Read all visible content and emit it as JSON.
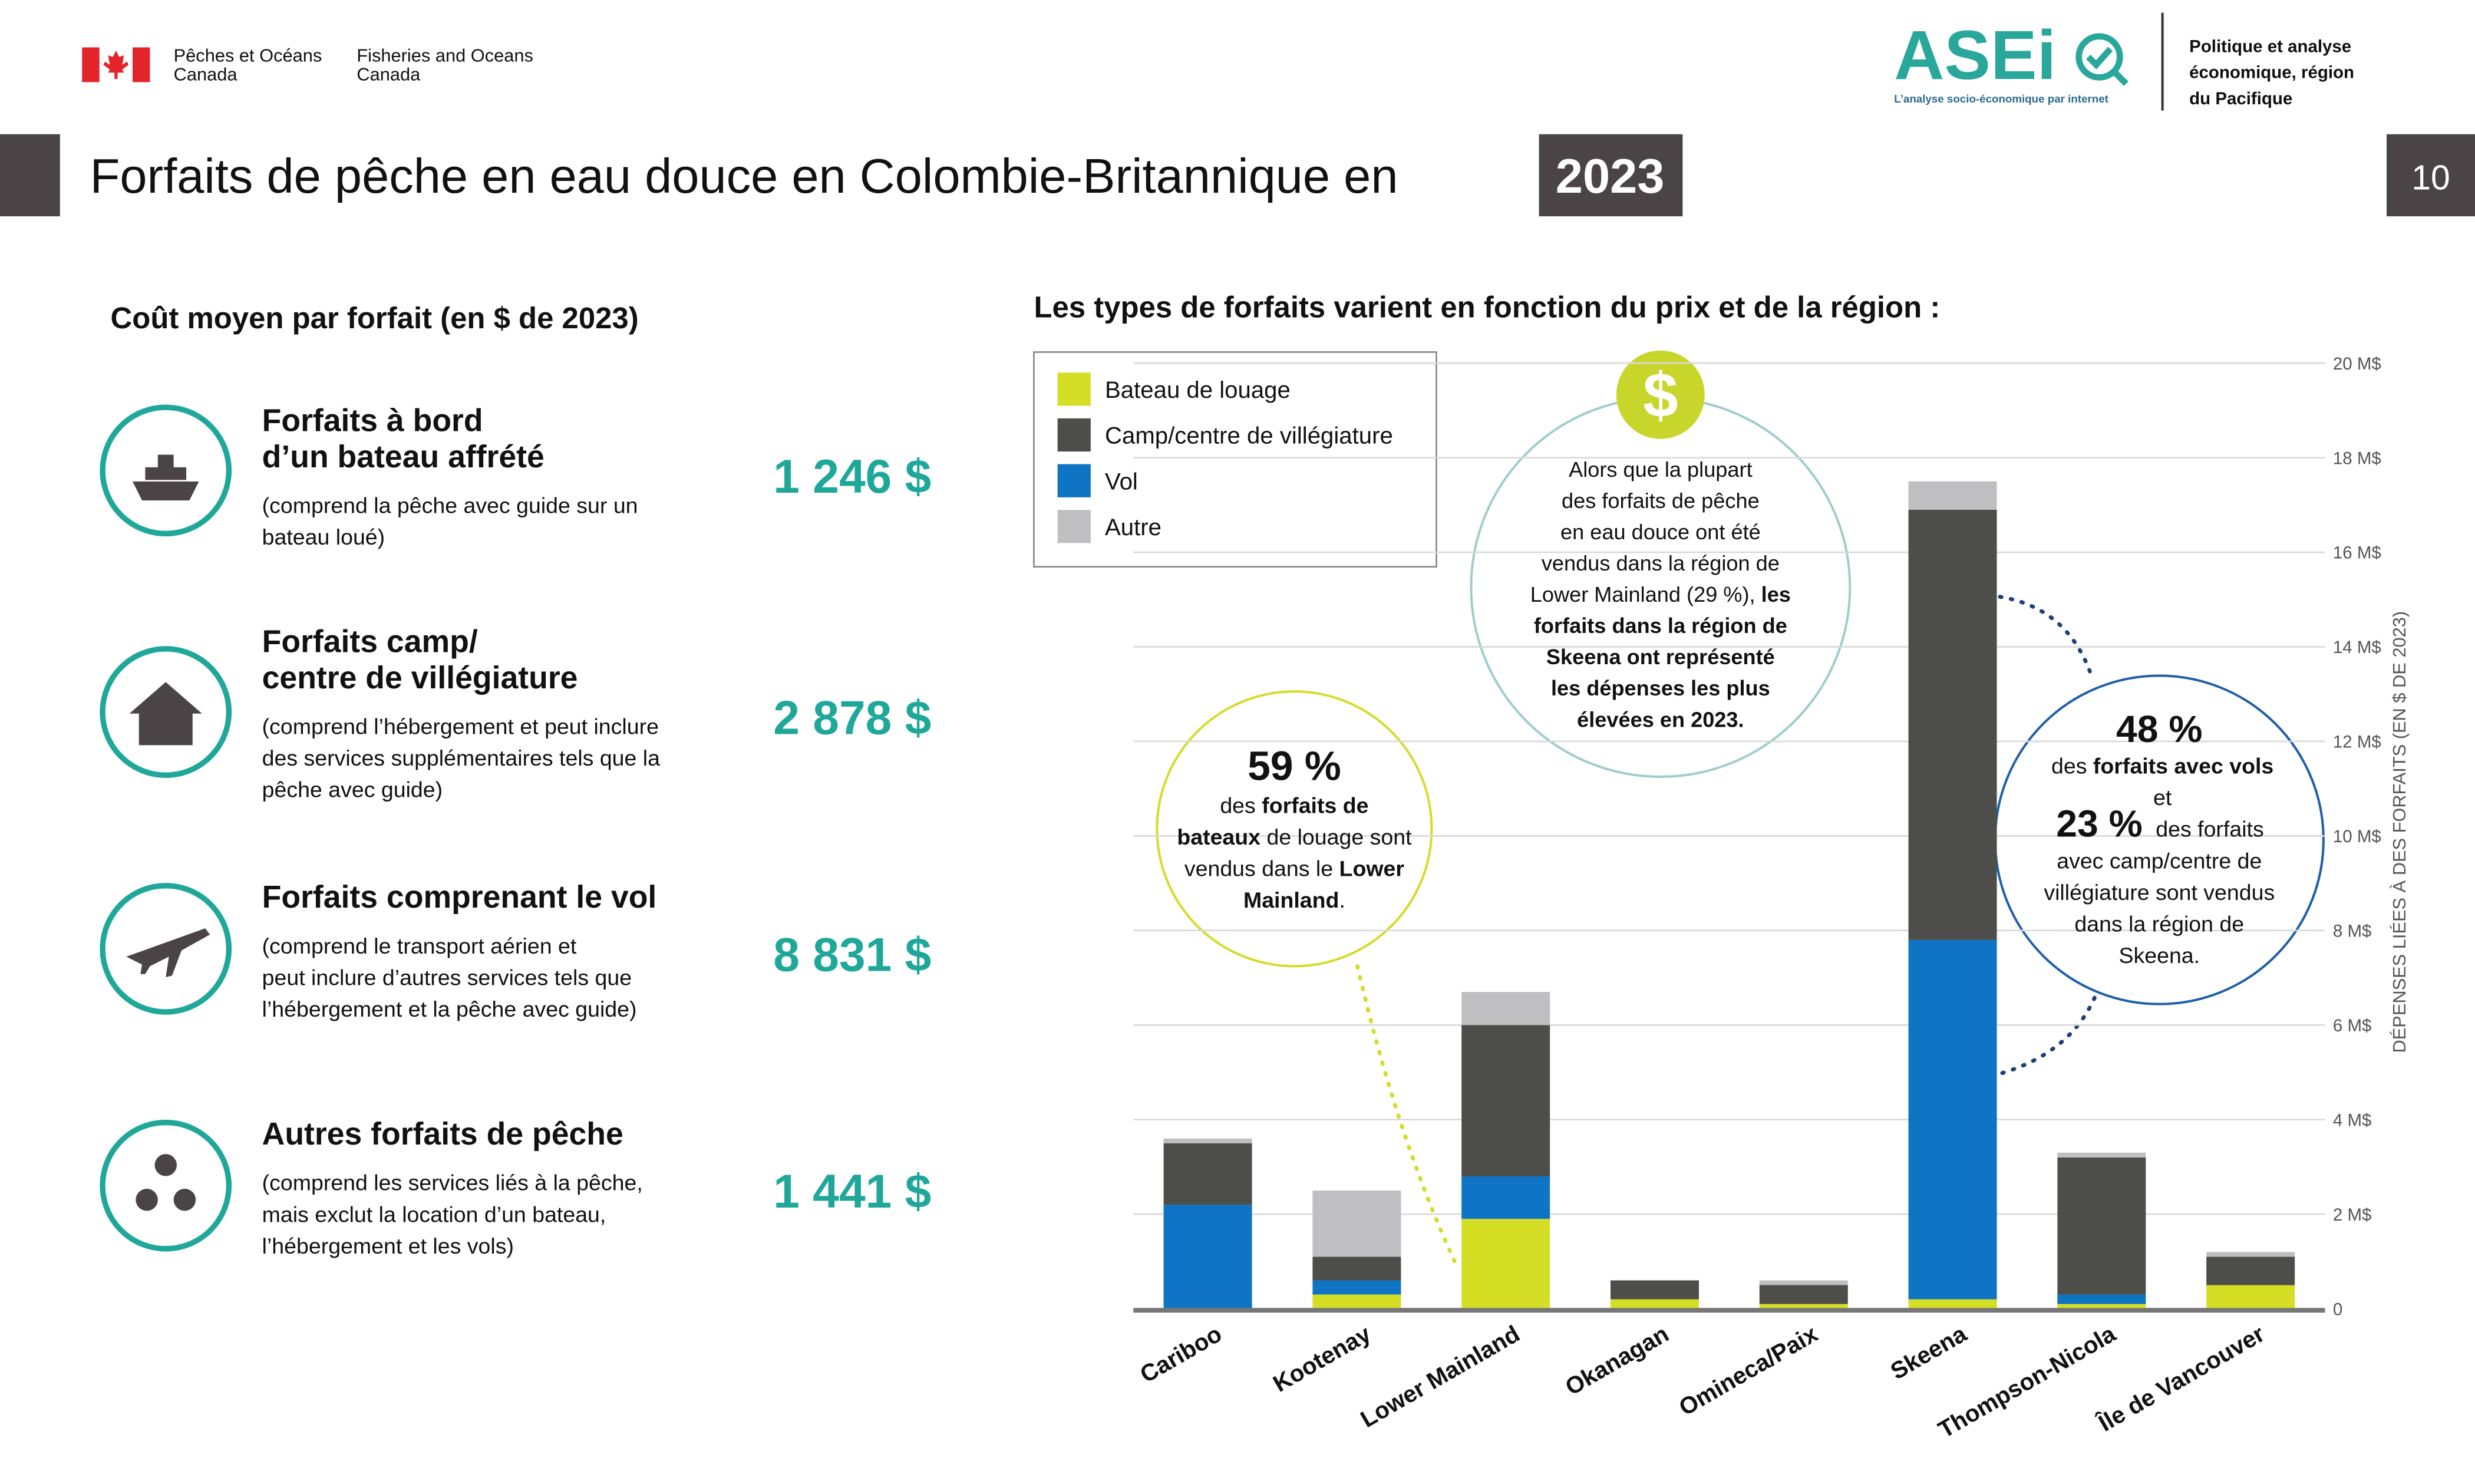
{
  "header": {
    "dept_fr": [
      "Pêches et Océans",
      "Canada"
    ],
    "dept_en": [
      "Fisheries and Oceans",
      "Canada"
    ],
    "logo": "ASEi",
    "logo_tagline": "L’analyse socio-économique par internet",
    "unit": [
      "Politique et analyse",
      "économique, région",
      "du Pacifique"
    ],
    "title": "Forfaits de pêche en eau douce en Colombie-Britannique en",
    "title_year": "2023",
    "page": "10"
  },
  "costs": {
    "heading": "Coût moyen par forfait (en $ de 2023)",
    "items": [
      {
        "title": [
          "Forfaits à bord",
          "d’un bateau affrété"
        ],
        "description": [
          "(comprend la pêche avec guide sur un",
          "bateau loué)"
        ],
        "price": "1 246 $"
      },
      {
        "title": [
          "Forfaits camp/",
          "centre de villégiature"
        ],
        "description": [
          "(comprend l’hébergement et peut inclure",
          "des services supplémentaires tels que la",
          "pêche avec guide)"
        ],
        "price": "2 878 $"
      },
      {
        "title": [
          "Forfaits comprenant le vol"
        ],
        "description": [
          "(comprend le transport aérien et",
          "peut inclure d’autres services tels que",
          "l’hébergement et la pêche avec guide)"
        ],
        "price": "8 831 $"
      },
      {
        "title": [
          "Autres forfaits de pêche"
        ],
        "description": [
          "(comprend les services liés à la pêche,",
          "mais exclut la location d’un bateau,",
          "l’hébergement et les vols)"
        ],
        "price": "1 441 $"
      }
    ]
  },
  "callouts": {
    "center": {
      "symbol": "$",
      "lines": [
        [
          {
            "text": "Alors que la plupart",
            "bold": false
          }
        ],
        [
          {
            "text": "des forfaits de pêche",
            "bold": false
          }
        ],
        [
          {
            "text": "en eau douce ont été",
            "bold": false
          }
        ],
        [
          {
            "text": "vendus dans la région de",
            "bold": false
          }
        ],
        [
          {
            "text": "Lower Mainland (29 %), ",
            "bold": false
          },
          {
            "text": "les",
            "bold": true
          }
        ],
        [
          {
            "text": "forfaits dans la région de",
            "bold": true
          }
        ],
        [
          {
            "text": "Skeena ont représenté",
            "bold": true
          }
        ],
        [
          {
            "text": "les dépenses les plus",
            "bold": true
          }
        ],
        [
          {
            "text": "élevées en 2023.",
            "bold": true
          }
        ]
      ]
    },
    "left": {
      "big": "59 %",
      "lines": [
        [
          {
            "text": "des ",
            "bold": false
          },
          {
            "text": "forfaits de",
            "bold": true
          }
        ],
        [
          {
            "text": "bateaux",
            "bold": true
          },
          {
            "text": " de louage sont",
            "bold": false
          }
        ],
        [
          {
            "text": "vendus dans le ",
            "bold": false
          },
          {
            "text": "Lower",
            "bold": true
          }
        ],
        [
          {
            "text": "Mainland",
            "bold": true
          },
          {
            "text": ".",
            "bold": false
          }
        ]
      ]
    },
    "right": {
      "big": "48 %",
      "lines1": [
        [
          {
            "text": "des ",
            "bold": false
          },
          {
            "text": "forfaits avec vols",
            "bold": true
          }
        ],
        [
          {
            "text": "et",
            "bold": false
          }
        ]
      ],
      "big2": "23 %",
      "lines2": [
        [
          {
            "text": " des forfaits",
            "bold": false
          }
        ],
        [
          {
            "text": "avec camp/centre de",
            "bold": false
          }
        ],
        [
          {
            "text": "villégiature sont vendus",
            "bold": false
          }
        ],
        [
          {
            "text": "dans la région de",
            "bold": false
          }
        ],
        [
          {
            "text": "Skeena.",
            "bold": false
          }
        ]
      ]
    }
  },
  "chart_data": {
    "type": "stacked-bar",
    "title": "Les types de forfaits varient en fonction du prix et de la région :",
    "y_label": "DÉPENSES LIÉES À DES FORFAITS (EN $ DE 2023)",
    "categories": [
      "Cariboo",
      "Kootenay",
      "Lower Mainland",
      "Okanagan",
      "Omineca/Paix",
      "Skeena",
      "Thompson-Nicola",
      "Île de Vancouver"
    ],
    "series": [
      {
        "name": "Bateau de louage",
        "color": "#d4de25",
        "values": [
          0,
          0.3,
          1.9,
          0.2,
          0.1,
          0.2,
          0.1,
          0.5
        ]
      },
      {
        "name": "Camp/centre de villégiature",
        "color": "#4d4d4a",
        "values": [
          1.3,
          0.5,
          3.2,
          0.4,
          0.4,
          9.1,
          2.9,
          0.6
        ]
      },
      {
        "name": "Vol",
        "color": "#0e74c3",
        "values": [
          2.2,
          0.3,
          0.9,
          0,
          0,
          7.6,
          0.2,
          0
        ]
      },
      {
        "name": "Autre",
        "color": "#bfbfc1",
        "values": [
          0.1,
          1.4,
          0.7,
          0,
          0.1,
          0.6,
          0.1,
          0.1
        ]
      }
    ],
    "ylim": [
      0,
      20
    ],
    "yticks": [
      0,
      {
        "value": 2,
        "label": "2 M$"
      },
      {
        "value": 4,
        "label": "4 M$"
      },
      {
        "value": 6,
        "label": "6 M$"
      },
      {
        "value": 8,
        "label": "8 M$"
      },
      {
        "value": 10,
        "label": "10 M$"
      },
      {
        "value": 12,
        "label": "12 M$"
      },
      {
        "value": 14,
        "label": "14 M$"
      },
      {
        "value": 16,
        "label": "16 M$"
      },
      {
        "value": 18,
        "label": "18 M$"
      },
      {
        "value": 20,
        "label": "20 M$"
      }
    ],
    "grid": true
  }
}
